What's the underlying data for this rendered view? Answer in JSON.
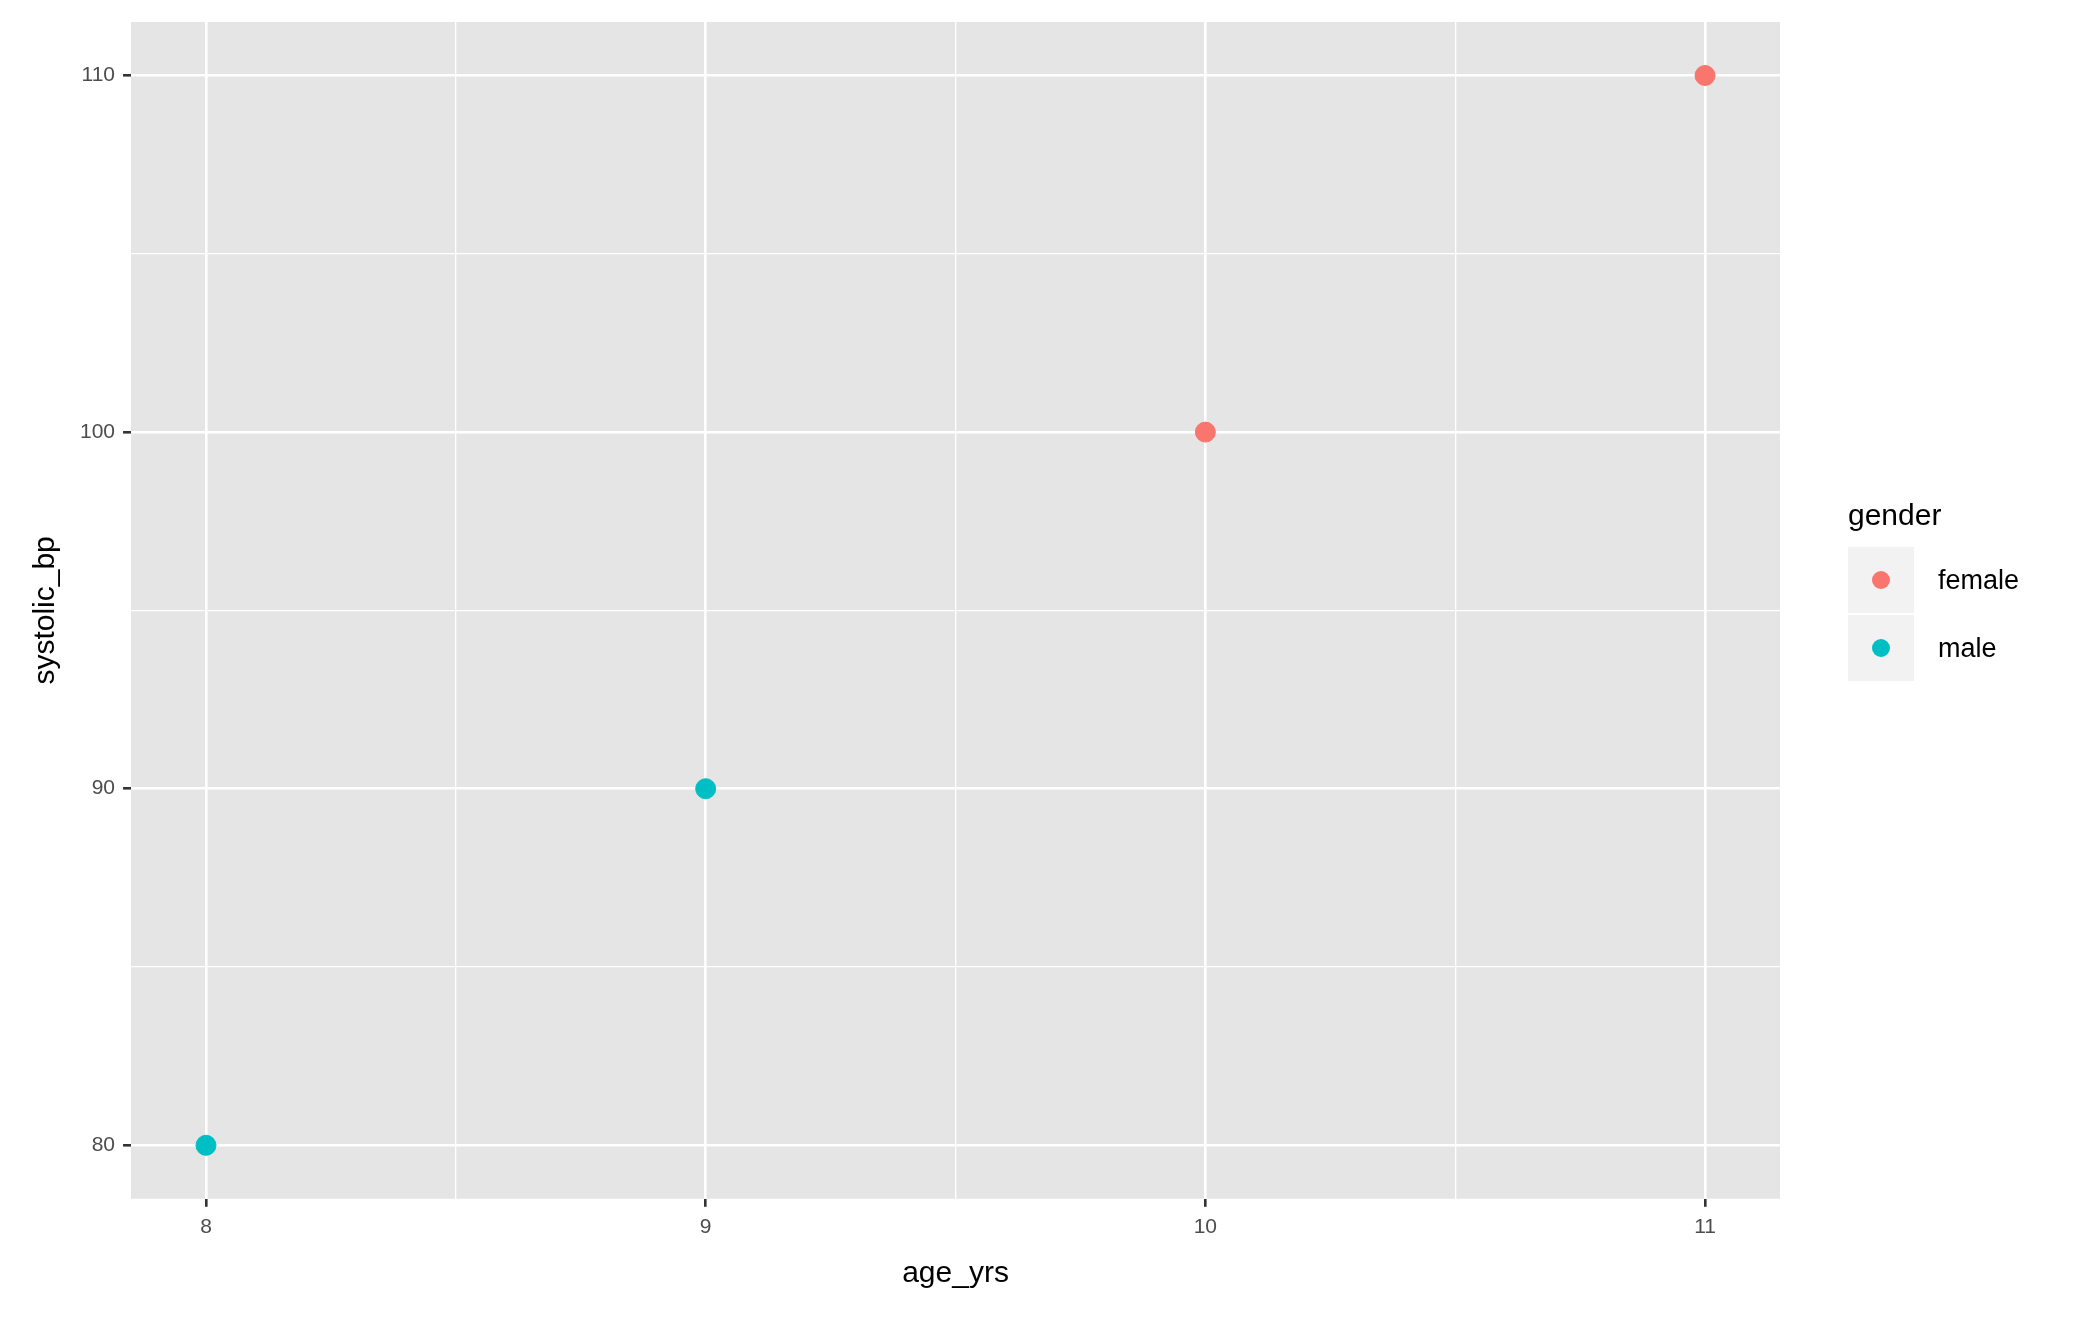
{
  "chart_data": {
    "type": "scatter",
    "xlabel": "age_yrs",
    "ylabel": "systolic_bp",
    "legend_title": "gender",
    "legend": "right",
    "grid": true,
    "marker": "circle",
    "xlim": [
      7.85,
      11.15
    ],
    "xticks": [
      8,
      {
        "value": 8.5,
        "label": null
      },
      9,
      {
        "value": 9.5,
        "label": null
      },
      10,
      {
        "value": 10.5,
        "label": null
      },
      11
    ],
    "ylim": [
      78.5,
      111.5
    ],
    "yticks": [
      80,
      {
        "value": 85,
        "label": null
      },
      90,
      {
        "value": 95,
        "label": null
      },
      100,
      {
        "value": 105,
        "label": null
      },
      110
    ],
    "series": [
      {
        "name": "female",
        "color": "#f8766d",
        "x": [
          10,
          11
        ],
        "values": [
          100,
          110
        ]
      },
      {
        "name": "male",
        "color": "#00bfc4",
        "x": [
          8,
          9
        ],
        "values": [
          80,
          90
        ]
      }
    ]
  }
}
